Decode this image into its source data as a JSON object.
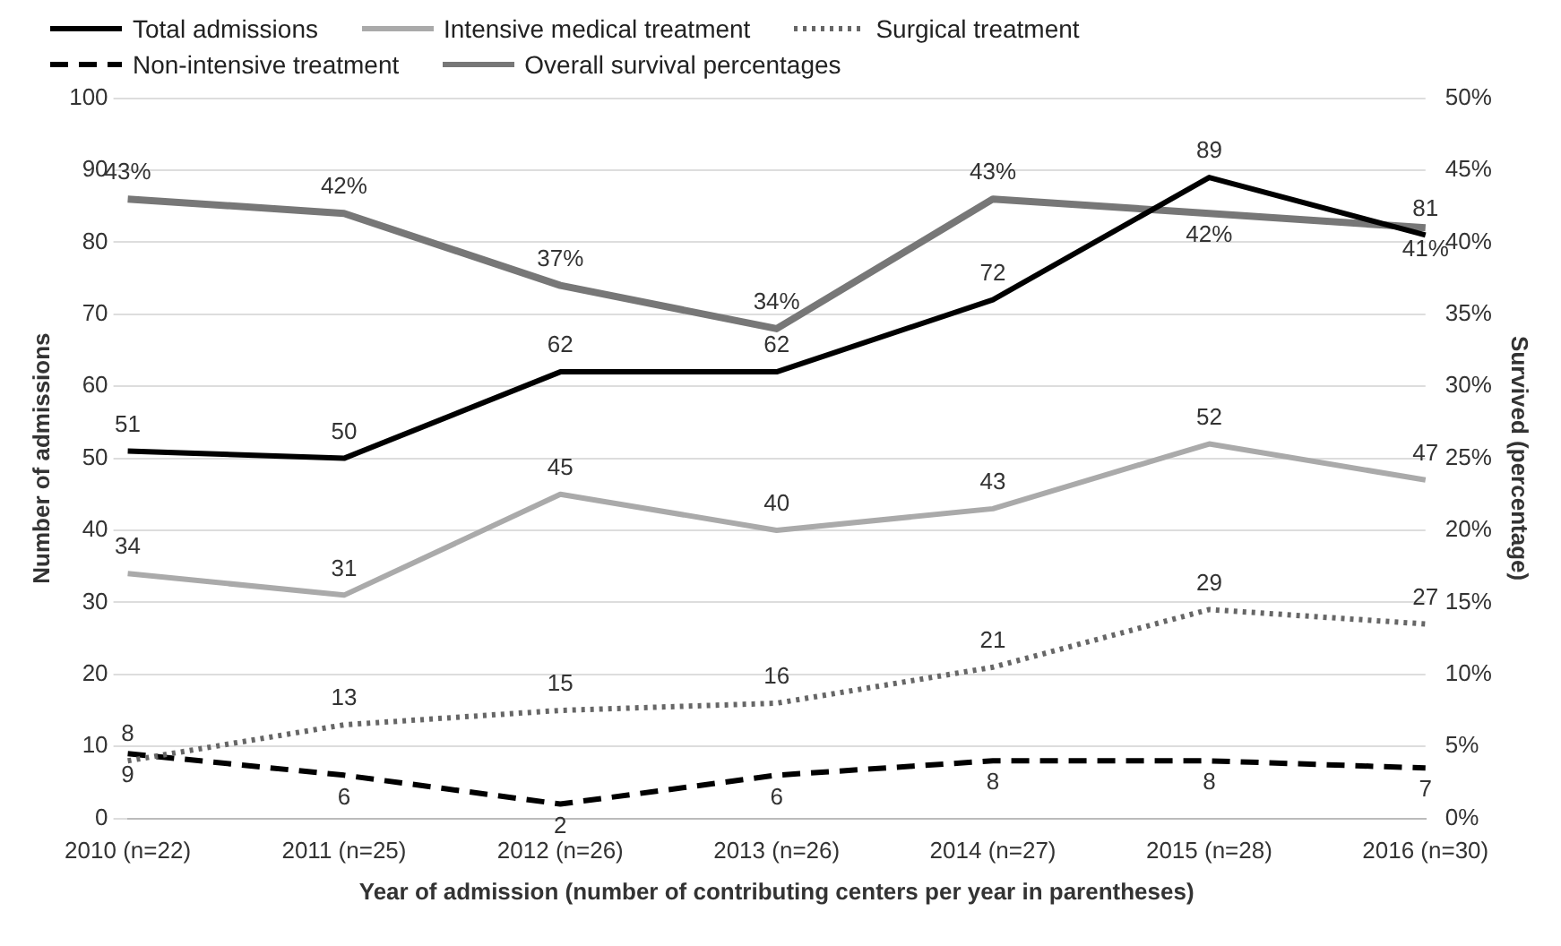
{
  "chart_data": {
    "type": "line",
    "xlabel": "Year of admission (number of contributing centers per year in parentheses)",
    "ylabel": "Number of admissions",
    "y2label": "Survived (percentage)",
    "categories": [
      "2010 (n=22)",
      "2011 (n=25)",
      "2012 (n=26)",
      "2013 (n=26)",
      "2014 (n=27)",
      "2015 (n=28)",
      "2016 (n=30)"
    ],
    "series": [
      {
        "name": "Total admissions",
        "color": "#000000",
        "line_style": "solid",
        "values": [
          51,
          50,
          62,
          62,
          72,
          89,
          81
        ],
        "value_labels": [
          "51",
          "50",
          "62",
          "62",
          "72",
          "89",
          "81"
        ]
      },
      {
        "name": "Intensive medical treatment",
        "color": "#aaaaaa",
        "line_style": "solid",
        "values": [
          34,
          31,
          45,
          40,
          43,
          52,
          47
        ],
        "value_labels": [
          "34",
          "31",
          "45",
          "40",
          "43",
          "52",
          "47"
        ]
      },
      {
        "name": "Surgical treatment",
        "color": "#666666",
        "line_style": "dotted",
        "values": [
          8,
          13,
          15,
          16,
          21,
          29,
          27
        ],
        "value_labels": [
          "8",
          "13",
          "15",
          "16",
          "21",
          "29",
          "27"
        ]
      },
      {
        "name": "Non-intensive treatment",
        "color": "#000000",
        "line_style": "dashed",
        "values": [
          9,
          6,
          2,
          6,
          8,
          8,
          7
        ],
        "value_labels": [
          "9",
          "6",
          "2",
          "6",
          "8",
          "8",
          "7"
        ]
      },
      {
        "name": "Overall survival percentages",
        "color": "#777777",
        "line_style": "solid",
        "axis": "y2",
        "values": [
          43,
          42,
          37,
          34,
          43,
          42,
          41
        ],
        "value_labels": [
          "43%",
          "42%",
          "37%",
          "34%",
          "43%",
          "42%",
          "41%"
        ]
      }
    ],
    "ylim": [
      0,
      100
    ],
    "yticks": [
      0,
      10,
      20,
      30,
      40,
      50,
      60,
      70,
      80,
      90,
      100
    ],
    "y2lim": [
      0,
      50
    ],
    "y2ticks": [
      {
        "value": 0,
        "label": "0%"
      },
      {
        "value": 5,
        "label": "5%"
      },
      {
        "value": 10,
        "label": "10%"
      },
      {
        "value": 15,
        "label": "15%"
      },
      {
        "value": 20,
        "label": "20%"
      },
      {
        "value": 25,
        "label": "25%"
      },
      {
        "value": 30,
        "label": "30%"
      },
      {
        "value": 35,
        "label": "35%"
      },
      {
        "value": 40,
        "label": "40%"
      },
      {
        "value": 45,
        "label": "45%"
      },
      {
        "value": 50,
        "label": "50%"
      }
    ],
    "grid": "y",
    "legend": "top",
    "marker": "none"
  }
}
